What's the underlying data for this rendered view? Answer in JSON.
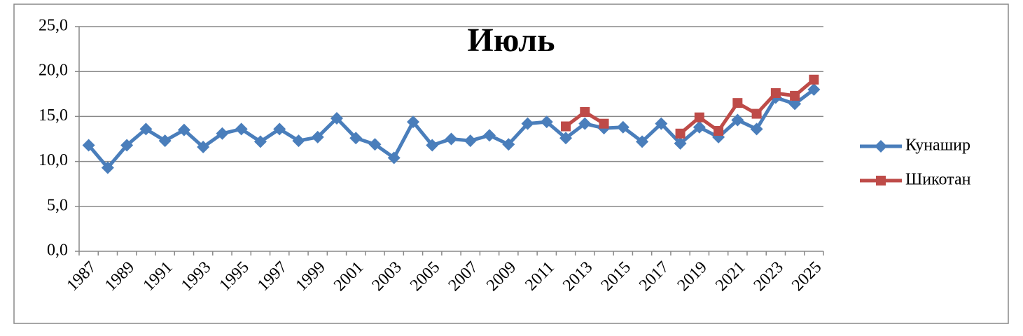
{
  "chart_data": {
    "type": "line",
    "title": "Июль",
    "categories": [
      "1987",
      null,
      "1989",
      null,
      "1991",
      null,
      "1993",
      null,
      "1995",
      null,
      "1997",
      null,
      "1999",
      null,
      "2001",
      null,
      "2003",
      null,
      "2005",
      null,
      "2007",
      null,
      "2009",
      null,
      "2011",
      null,
      "2013",
      null,
      "2015",
      null,
      "2017",
      null,
      "2019",
      null,
      "2021",
      null,
      "2023",
      null,
      "2025"
    ],
    "series": [
      {
        "name": "Кунашир",
        "color": "#4a7ebb",
        "marker": "diamond",
        "values": [
          11.8,
          9.3,
          11.8,
          13.6,
          12.3,
          13.5,
          11.6,
          13.1,
          13.6,
          12.2,
          13.6,
          12.3,
          12.7,
          14.8,
          12.6,
          11.9,
          10.4,
          14.4,
          11.8,
          12.5,
          12.3,
          12.9,
          11.9,
          14.2,
          14.4,
          12.6,
          14.2,
          13.7,
          13.8,
          12.2,
          14.2,
          12.0,
          13.8,
          12.7,
          14.6,
          13.6,
          17.1,
          16.4,
          18.0
        ]
      },
      {
        "name": "Шикотан",
        "color": "#be4b48",
        "marker": "square",
        "values": [
          null,
          null,
          null,
          null,
          null,
          null,
          null,
          null,
          null,
          null,
          null,
          null,
          null,
          null,
          null,
          null,
          null,
          null,
          null,
          null,
          null,
          null,
          null,
          null,
          null,
          13.9,
          15.5,
          14.2,
          null,
          null,
          null,
          13.1,
          14.9,
          13.4,
          16.5,
          15.3,
          17.6,
          17.3,
          19.1
        ]
      }
    ],
    "ylim": [
      0,
      25
    ],
    "yticks": [
      {
        "value": 0,
        "label": "0,0"
      },
      {
        "value": 5,
        "label": "5,0"
      },
      {
        "value": 10,
        "label": "10,0"
      },
      {
        "value": 15,
        "label": "15,0"
      },
      {
        "value": 20,
        "label": "20,0"
      },
      {
        "value": 25,
        "label": "25,0"
      }
    ],
    "grid": true,
    "legend": "right"
  }
}
